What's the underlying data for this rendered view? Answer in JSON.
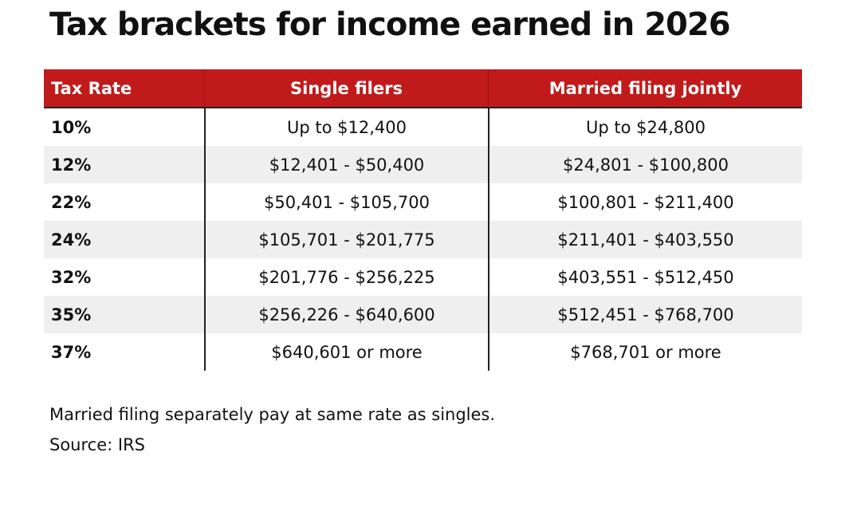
{
  "title": "Tax brackets for income earned in 2026",
  "table": {
    "header": [
      "Tax Rate",
      "Single filers",
      "Married filing jointly"
    ],
    "rows": [
      [
        "10%",
        "Up to $12,400",
        "Up to $24,800"
      ],
      [
        "12%",
        "$12,401 - $50,400",
        "$24,801 - $100,800"
      ],
      [
        "22%",
        "$50,401 - $105,700",
        "$100,801 - $211,400"
      ],
      [
        "24%",
        "$105,701 - $201,775",
        "$211,401 - $403,550"
      ],
      [
        "32%",
        "$201,776 - $256,225",
        "$403,551 - $512,450"
      ],
      [
        "35%",
        "$256,226 - $640,600",
        "$512,451 - $768,700"
      ],
      [
        "37%",
        "$640,601 or more",
        "$768,701 or more"
      ]
    ]
  },
  "notes": [
    "Married filing separately pay at same rate as singles.",
    "Source: IRS"
  ]
}
